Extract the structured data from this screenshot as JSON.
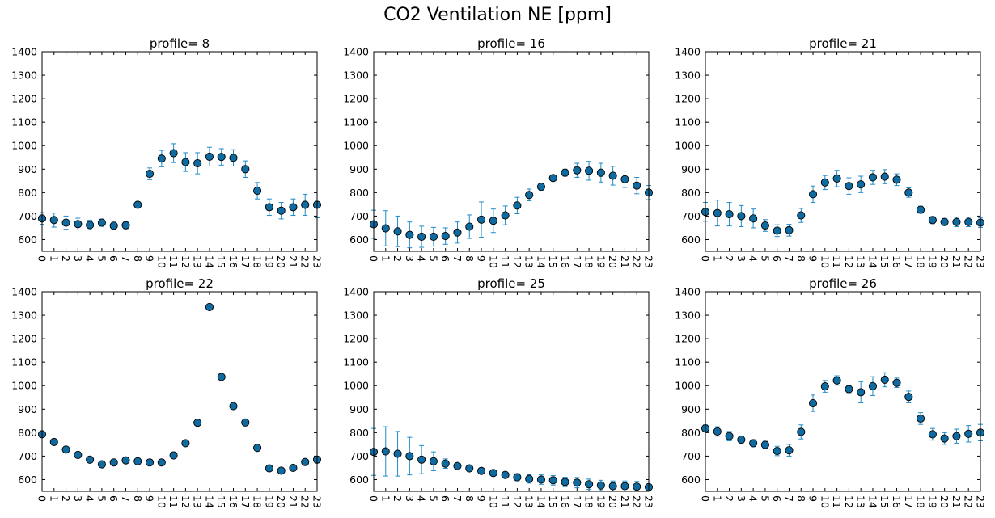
{
  "suptitle": "CO2 Ventilation NE [ppm]",
  "colors": {
    "marker": "#0f6a9f",
    "errorbar": "#1f8ac9",
    "axis": "#000000"
  },
  "chart_data": [
    {
      "type": "scatter",
      "title": "profile= 8",
      "xlabel": "",
      "ylabel": "",
      "x": [
        0,
        1,
        2,
        3,
        4,
        5,
        6,
        7,
        8,
        9,
        10,
        11,
        12,
        13,
        14,
        15,
        16,
        17,
        18,
        19,
        20,
        21,
        22,
        23
      ],
      "y": [
        690,
        683,
        672,
        666,
        662,
        672,
        659,
        661,
        748,
        880,
        945,
        968,
        930,
        925,
        953,
        952,
        948,
        900,
        808,
        738,
        723,
        738,
        748,
        748
      ],
      "yerr": [
        25,
        30,
        28,
        25,
        20,
        15,
        15,
        15,
        12,
        25,
        35,
        40,
        40,
        45,
        40,
        35,
        35,
        35,
        35,
        35,
        35,
        35,
        45,
        55
      ],
      "ylim": [
        550,
        1400
      ],
      "xlim": [
        0,
        23
      ],
      "yticks": [
        600,
        700,
        800,
        900,
        1000,
        1100,
        1200,
        1300,
        1400
      ],
      "xticks": [
        "0",
        "1",
        "2",
        "3",
        "4",
        "5",
        "6",
        "7",
        "8",
        "9",
        "10",
        "11",
        "12",
        "13",
        "14",
        "15",
        "16",
        "17",
        "18",
        "19",
        "20",
        "21",
        "22",
        "23"
      ]
    },
    {
      "type": "scatter",
      "title": "profile= 16",
      "xlabel": "",
      "ylabel": "",
      "x": [
        0,
        1,
        2,
        3,
        4,
        5,
        6,
        7,
        8,
        9,
        10,
        11,
        12,
        13,
        14,
        15,
        16,
        17,
        18,
        19,
        20,
        21,
        22,
        23
      ],
      "y": [
        665,
        648,
        635,
        620,
        612,
        612,
        615,
        630,
        655,
        685,
        680,
        703,
        745,
        790,
        825,
        862,
        885,
        895,
        893,
        885,
        872,
        857,
        830,
        800
      ],
      "yerr": [
        60,
        75,
        65,
        55,
        45,
        40,
        35,
        45,
        50,
        75,
        50,
        40,
        35,
        25,
        15,
        10,
        15,
        30,
        40,
        40,
        40,
        35,
        35,
        30
      ],
      "ylim": [
        550,
        1400
      ],
      "xlim": [
        0,
        23
      ],
      "yticks": [
        600,
        700,
        800,
        900,
        1000,
        1100,
        1200,
        1300,
        1400
      ],
      "xticks": [
        "0",
        "1",
        "2",
        "3",
        "4",
        "5",
        "6",
        "7",
        "8",
        "9",
        "10",
        "11",
        "12",
        "13",
        "14",
        "15",
        "16",
        "17",
        "18",
        "19",
        "20",
        "21",
        "22",
        "23"
      ]
    },
    {
      "type": "scatter",
      "title": "profile= 21",
      "xlabel": "",
      "ylabel": "",
      "x": [
        0,
        1,
        2,
        3,
        4,
        5,
        6,
        7,
        8,
        9,
        10,
        11,
        12,
        13,
        14,
        15,
        16,
        17,
        18,
        19,
        20,
        21,
        22,
        23
      ],
      "y": [
        718,
        713,
        708,
        700,
        690,
        660,
        638,
        640,
        703,
        793,
        843,
        860,
        828,
        835,
        865,
        868,
        855,
        800,
        727,
        683,
        675,
        675,
        675,
        672
      ],
      "yerr": [
        40,
        55,
        50,
        45,
        40,
        25,
        25,
        25,
        30,
        35,
        30,
        35,
        35,
        35,
        30,
        30,
        25,
        20,
        15,
        15,
        15,
        20,
        20,
        20
      ],
      "ylim": [
        550,
        1400
      ],
      "xlim": [
        0,
        23
      ],
      "yticks": [
        600,
        700,
        800,
        900,
        1000,
        1100,
        1200,
        1300,
        1400
      ],
      "xticks": [
        "0",
        "1",
        "2",
        "3",
        "4",
        "5",
        "6",
        "7",
        "8",
        "9",
        "10",
        "11",
        "12",
        "13",
        "14",
        "15",
        "16",
        "17",
        "18",
        "19",
        "20",
        "21",
        "22",
        "23"
      ]
    },
    {
      "type": "scatter",
      "title": "profile= 22",
      "xlabel": "",
      "ylabel": "",
      "x": [
        0,
        1,
        2,
        3,
        4,
        5,
        6,
        7,
        8,
        9,
        10,
        11,
        12,
        13,
        14,
        15,
        16,
        17,
        18,
        19,
        20,
        21,
        22,
        23
      ],
      "y": [
        793,
        760,
        728,
        705,
        685,
        665,
        673,
        682,
        678,
        673,
        673,
        703,
        755,
        842,
        1335,
        1037,
        913,
        843,
        735,
        648,
        638,
        650,
        675,
        685
      ],
      "yerr": [
        0,
        0,
        0,
        0,
        0,
        0,
        0,
        0,
        0,
        0,
        0,
        0,
        0,
        0,
        0,
        0,
        0,
        0,
        0,
        0,
        0,
        0,
        0,
        0
      ],
      "ylim": [
        550,
        1400
      ],
      "xlim": [
        0,
        23
      ],
      "yticks": [
        600,
        700,
        800,
        900,
        1000,
        1100,
        1200,
        1300,
        1400
      ],
      "xticks": [
        "0",
        "1",
        "2",
        "3",
        "4",
        "5",
        "6",
        "7",
        "8",
        "9",
        "10",
        "11",
        "12",
        "13",
        "14",
        "15",
        "16",
        "17",
        "18",
        "19",
        "20",
        "21",
        "22",
        "23"
      ]
    },
    {
      "type": "scatter",
      "title": "profile= 25",
      "xlabel": "",
      "ylabel": "",
      "x": [
        0,
        1,
        2,
        3,
        4,
        5,
        6,
        7,
        8,
        9,
        10,
        11,
        12,
        13,
        14,
        15,
        16,
        17,
        18,
        19,
        20,
        21,
        22,
        23
      ],
      "y": [
        718,
        720,
        710,
        700,
        685,
        678,
        668,
        658,
        648,
        637,
        628,
        620,
        610,
        603,
        600,
        597,
        590,
        587,
        580,
        575,
        572,
        572,
        570,
        568
      ],
      "yerr": [
        100,
        105,
        95,
        80,
        60,
        40,
        20,
        10,
        8,
        8,
        8,
        12,
        15,
        18,
        20,
        20,
        20,
        22,
        22,
        22,
        22,
        22,
        22,
        22
      ],
      "ylim": [
        550,
        1400
      ],
      "xlim": [
        0,
        23
      ],
      "yticks": [
        600,
        700,
        800,
        900,
        1000,
        1100,
        1200,
        1300,
        1400
      ],
      "xticks": [
        "0",
        "1",
        "2",
        "3",
        "4",
        "5",
        "6",
        "7",
        "8",
        "9",
        "10",
        "11",
        "12",
        "13",
        "14",
        "15",
        "16",
        "17",
        "18",
        "19",
        "20",
        "21",
        "22",
        "23"
      ]
    },
    {
      "type": "scatter",
      "title": "profile= 26",
      "xlabel": "",
      "ylabel": "",
      "x": [
        0,
        1,
        2,
        3,
        4,
        5,
        6,
        7,
        8,
        9,
        10,
        11,
        12,
        13,
        14,
        15,
        16,
        17,
        18,
        19,
        20,
        21,
        22,
        23
      ],
      "y": [
        818,
        805,
        785,
        770,
        755,
        748,
        722,
        725,
        803,
        925,
        997,
        1022,
        985,
        972,
        998,
        1025,
        1012,
        952,
        860,
        793,
        775,
        785,
        795,
        800
      ],
      "yerr": [
        15,
        20,
        20,
        15,
        15,
        15,
        20,
        25,
        30,
        35,
        25,
        20,
        15,
        45,
        40,
        30,
        20,
        25,
        25,
        25,
        25,
        30,
        35,
        35
      ],
      "ylim": [
        550,
        1400
      ],
      "xlim": [
        0,
        23
      ],
      "yticks": [
        600,
        700,
        800,
        900,
        1000,
        1100,
        1200,
        1300,
        1400
      ],
      "xticks": [
        "0",
        "1",
        "2",
        "3",
        "4",
        "5",
        "6",
        "7",
        "8",
        "9",
        "10",
        "11",
        "12",
        "13",
        "14",
        "15",
        "16",
        "17",
        "18",
        "19",
        "20",
        "21",
        "22",
        "23"
      ]
    }
  ]
}
